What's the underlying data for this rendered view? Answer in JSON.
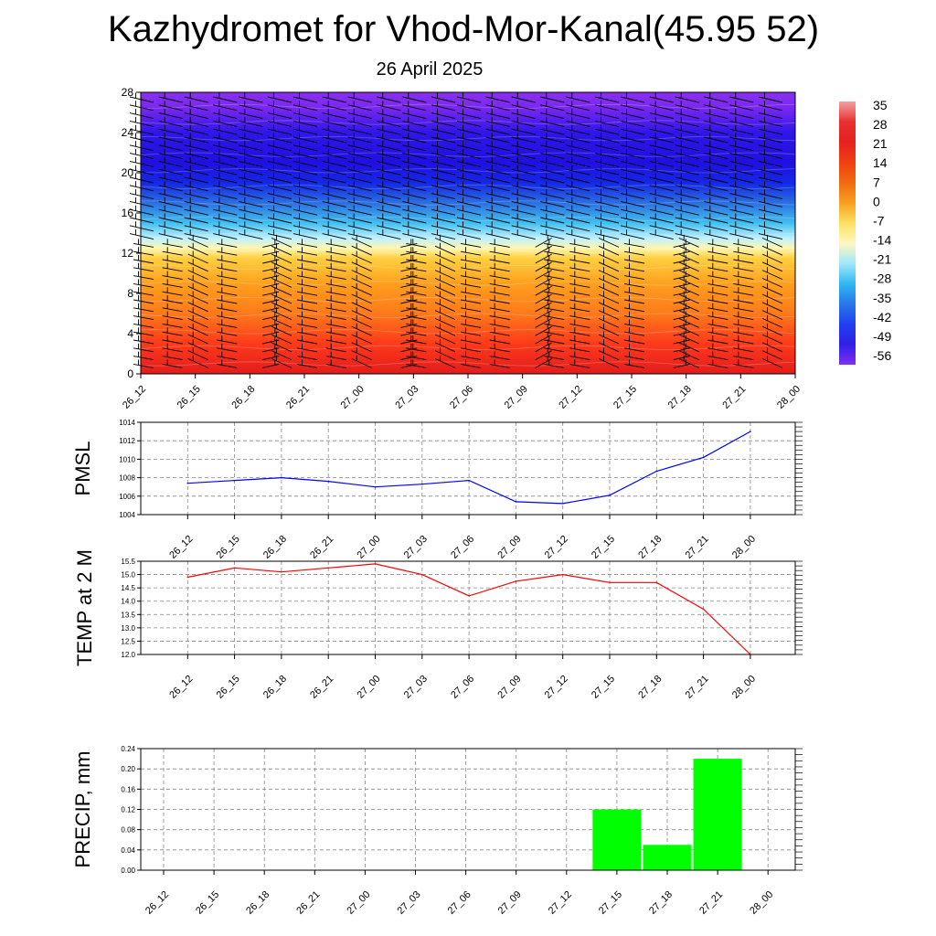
{
  "header": {
    "title": "Kazhydromet for Vhod-Mor-Kanal(45.95 52)",
    "subtitle": "26 April 2025"
  },
  "chart_data": [
    {
      "type": "heatmap",
      "id": "cross-section",
      "x_labels": [
        "26_12",
        "26_15",
        "26_18",
        "26_21",
        "27_00",
        "27_03",
        "27_06",
        "27_09",
        "27_12",
        "27_15",
        "27_18",
        "27_21",
        "28_00"
      ],
      "y_ticks": [
        "0",
        "4",
        "8",
        "12",
        "16",
        "20",
        "24",
        "28"
      ],
      "ylim": [
        0,
        28
      ],
      "colorbar": {
        "labels": [
          "35",
          "28",
          "21",
          "14",
          "7",
          "0",
          "-7",
          "-14",
          "-21",
          "-28",
          "-35",
          "-42",
          "-49",
          "-56"
        ],
        "colors": [
          "#f4a0a0",
          "#e83030",
          "#e62020",
          "#f04010",
          "#f06a10",
          "#f8a020",
          "#fde060",
          "#fff8c0",
          "#a0e8ff",
          "#30b8f0",
          "#2878e8",
          "#2040f0",
          "#3020e8",
          "#8030f0"
        ]
      },
      "temperature_bands": [
        {
          "level": 0,
          "color": "#e21c1c"
        },
        {
          "level": 3,
          "color": "#ff3a1a"
        },
        {
          "level": 6,
          "color": "#ff7a1a"
        },
        {
          "level": 9,
          "color": "#ffa01e"
        },
        {
          "level": 11.5,
          "color": "#ffd040"
        },
        {
          "level": 12.5,
          "color": "#fff6b0"
        },
        {
          "level": 13.5,
          "color": "#bff0ff"
        },
        {
          "level": 15,
          "color": "#40c0f0"
        },
        {
          "level": 17,
          "color": "#2a70e0"
        },
        {
          "level": 19,
          "color": "#1428e6"
        },
        {
          "level": 21,
          "color": "#2010e0"
        },
        {
          "level": 24,
          "color": "#3016e8"
        },
        {
          "level": 26.5,
          "color": "#7a28f0"
        },
        {
          "level": 28,
          "color": "#8a30f0"
        }
      ]
    },
    {
      "type": "line",
      "id": "pmsl",
      "ylabel": "PMSL",
      "categories": [
        "26_12",
        "26_15",
        "26_18",
        "26_21",
        "27_00",
        "27_03",
        "27_06",
        "27_09",
        "27_12",
        "27_15",
        "27_18",
        "27_21",
        "28_00"
      ],
      "series": [
        {
          "values": [
            1007.4,
            1007.7,
            1008.0,
            1007.6,
            1007.0,
            1007.3,
            1007.7,
            1005.4,
            1005.2,
            1006.1,
            1008.7,
            1010.2,
            1013.0
          ],
          "color": "#0000ff"
        }
      ],
      "ylim": [
        1004,
        1014
      ],
      "yticks": [
        "1004",
        "1006",
        "1008",
        "1010",
        "1012",
        "1014"
      ]
    },
    {
      "type": "line",
      "id": "temp2m",
      "ylabel": "TEMP at 2 M",
      "categories": [
        "26_12",
        "26_15",
        "26_18",
        "26_21",
        "27_00",
        "27_03",
        "27_06",
        "27_09",
        "27_12",
        "27_15",
        "27_18",
        "27_21",
        "28_00"
      ],
      "series": [
        {
          "values": [
            14.9,
            15.25,
            15.1,
            15.25,
            15.4,
            15.0,
            14.2,
            14.75,
            15.0,
            14.7,
            14.7,
            13.7,
            12.0
          ],
          "color": "#ff0000"
        }
      ],
      "ylim": [
        12.0,
        15.5
      ],
      "yticks": [
        "12.0",
        "12.5",
        "13.0",
        "13.5",
        "14.0",
        "14.5",
        "15.0",
        "15.5"
      ]
    },
    {
      "type": "bar",
      "id": "precip",
      "ylabel": "PRECIP, mm",
      "categories": [
        "26_12",
        "26_15",
        "26_18",
        "26_21",
        "27_00",
        "27_03",
        "27_06",
        "27_09",
        "27_12",
        "27_15",
        "27_18",
        "27_21",
        "28_00"
      ],
      "values": [
        0,
        0,
        0,
        0,
        0,
        0,
        0,
        0,
        0,
        0.12,
        0.05,
        0.22,
        0
      ],
      "color": "#00ff00",
      "ylim": [
        0,
        0.24
      ],
      "yticks": [
        "0.00",
        "0.04",
        "0.08",
        "0.12",
        "0.16",
        "0.20",
        "0.24"
      ]
    }
  ]
}
